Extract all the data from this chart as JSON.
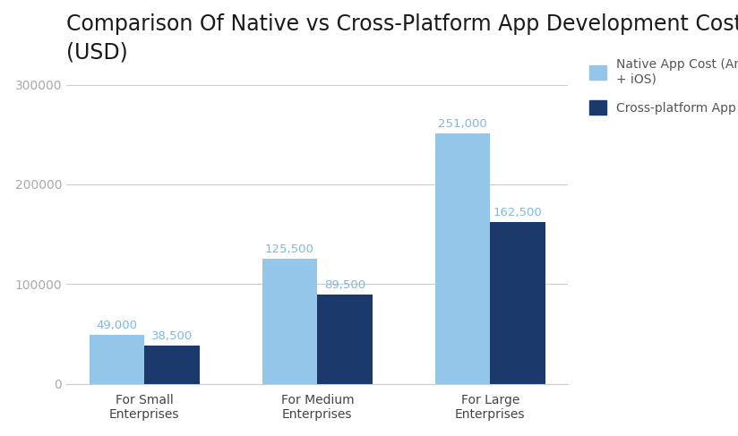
{
  "title": "Comparison Of Native vs Cross-Platform App Development Costs\n(USD)",
  "categories": [
    "For Small\nEnterprises",
    "For Medium\nEnterprises",
    "For Large\nEnterprises"
  ],
  "native_values": [
    49000,
    125500,
    251000
  ],
  "cross_values": [
    38500,
    89500,
    162500
  ],
  "native_color": "#93C6E8",
  "cross_color": "#1B3A6B",
  "native_label": "Native App Cost (Android\n+ iOS)",
  "cross_label": "Cross-platform App Cost",
  "ylim": [
    0,
    315000
  ],
  "yticks": [
    0,
    100000,
    200000,
    300000
  ],
  "ytick_labels": [
    "0",
    "100000",
    "200000",
    "300000"
  ],
  "bar_width": 0.32,
  "title_fontsize": 17,
  "label_fontsize": 9.5,
  "tick_fontsize": 10,
  "value_label_color_native": "#7EB8E8",
  "value_label_color_cross": "#7EB8E8",
  "background_color": "#ffffff",
  "grid_color": "#cccccc",
  "legend_fontsize": 10,
  "title_color": "#1a1a1a",
  "axis_label_color": "#aaaaaa"
}
